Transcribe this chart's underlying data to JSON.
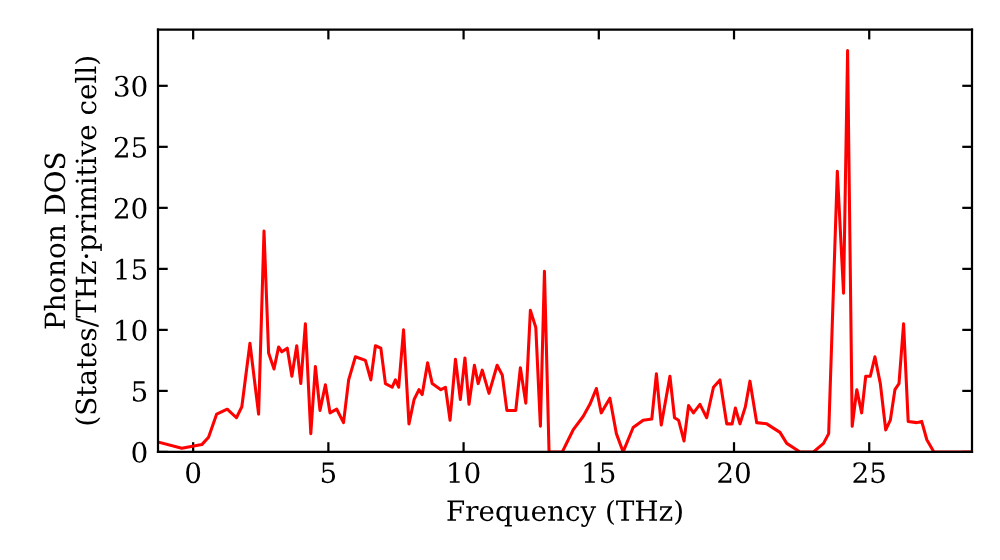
{
  "chart_data": {
    "type": "line",
    "xlabel": "Frequency (THz)",
    "ylabel": "Phonon DOS\n(States/THz·primitive cell)",
    "xlim": [
      -1.3,
      28.8
    ],
    "ylim": [
      0,
      34.6
    ],
    "xticks": [
      0,
      5,
      10,
      15,
      20,
      25
    ],
    "yticks": [
      0,
      5,
      10,
      15,
      20,
      25,
      30
    ],
    "grid": false,
    "series": [
      {
        "color": "#ff0000",
        "x": [
          -1.28,
          -0.42,
          0.32,
          0.57,
          0.87,
          1.26,
          1.6,
          1.8,
          2.1,
          2.42,
          2.62,
          2.79,
          2.99,
          3.16,
          3.28,
          3.48,
          3.65,
          3.83,
          3.98,
          4.15,
          4.35,
          4.52,
          4.69,
          4.89,
          5.06,
          5.31,
          5.56,
          5.75,
          6.0,
          6.37,
          6.57,
          6.74,
          6.94,
          7.11,
          7.36,
          7.48,
          7.6,
          7.78,
          7.98,
          8.17,
          8.35,
          8.47,
          8.67,
          8.84,
          9.16,
          9.33,
          9.5,
          9.7,
          9.88,
          10.05,
          10.2,
          10.4,
          10.54,
          10.69,
          10.94,
          11.24,
          11.43,
          11.6,
          11.93,
          12.1,
          12.3,
          12.47,
          12.67,
          12.84,
          12.99,
          13.16,
          13.65,
          14.05,
          14.42,
          14.67,
          14.91,
          15.09,
          15.41,
          15.65,
          15.9,
          16.27,
          16.64,
          16.96,
          17.13,
          17.31,
          17.63,
          17.8,
          17.95,
          18.15,
          18.32,
          18.5,
          18.74,
          18.99,
          19.24,
          19.48,
          19.73,
          19.93,
          20.05,
          20.22,
          20.42,
          20.59,
          20.84,
          21.21,
          21.7,
          21.95,
          22.44,
          22.94,
          23.31,
          23.5,
          23.82,
          24.05,
          24.2,
          24.37,
          24.54,
          24.72,
          24.87,
          25.04,
          25.21,
          25.41,
          25.61,
          25.78,
          25.95,
          26.1,
          26.27,
          26.44,
          26.76,
          26.94,
          27.13,
          27.39,
          28.74
        ],
        "values": [
          0.8,
          0.3,
          0.6,
          1.2,
          3.1,
          3.5,
          2.8,
          3.7,
          8.9,
          3.1,
          18.1,
          8.1,
          6.8,
          8.6,
          8.2,
          8.5,
          6.2,
          8.7,
          5.6,
          10.5,
          1.5,
          7.0,
          3.4,
          5.5,
          3.2,
          3.5,
          2.4,
          5.9,
          7.8,
          7.5,
          5.9,
          8.7,
          8.5,
          5.6,
          5.3,
          5.9,
          5.3,
          10.0,
          2.3,
          4.3,
          5.1,
          4.7,
          7.3,
          5.6,
          5.1,
          5.3,
          2.6,
          7.6,
          4.3,
          7.7,
          3.9,
          7.1,
          5.6,
          6.7,
          4.8,
          7.1,
          6.3,
          3.4,
          3.4,
          6.9,
          4.0,
          11.6,
          10.2,
          2.1,
          14.8,
          0,
          0,
          1.8,
          2.9,
          3.9,
          5.2,
          3.2,
          4.4,
          1.5,
          0,
          2.0,
          2.6,
          2.7,
          6.4,
          2.2,
          6.2,
          2.8,
          2.6,
          0.9,
          3.8,
          3.2,
          3.9,
          2.8,
          5.3,
          5.9,
          2.3,
          2.3,
          3.6,
          2.3,
          3.7,
          5.8,
          2.4,
          2.3,
          1.6,
          0.7,
          0,
          0,
          0.7,
          1.5,
          23.0,
          13.0,
          32.9,
          2.1,
          5.1,
          3.2,
          6.2,
          6.2,
          7.8,
          5.6,
          1.8,
          2.6,
          5.1,
          5.6,
          10.5,
          2.5,
          2.4,
          2.5,
          1.0,
          0,
          0
        ]
      }
    ]
  }
}
